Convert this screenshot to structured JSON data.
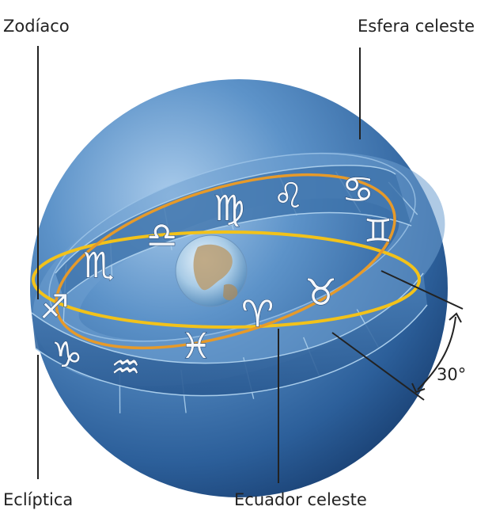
{
  "labels": {
    "zodiac": "Zodíaco",
    "celestial_sphere": "Esfera celeste",
    "ecliptic": "Eclíptica",
    "celestial_equator": "Ecuador celeste",
    "angle": "30°"
  },
  "zodiac_signs": [
    {
      "name": "cancer",
      "symbol": "♋"
    },
    {
      "name": "leo",
      "symbol": "♌"
    },
    {
      "name": "virgo",
      "symbol": "♍"
    },
    {
      "name": "libra",
      "symbol": "♎"
    },
    {
      "name": "scorpio",
      "symbol": "♏"
    },
    {
      "name": "sagittarius",
      "symbol": "♐"
    },
    {
      "name": "capricorn",
      "symbol": "♑"
    },
    {
      "name": "aquarius",
      "symbol": "♒"
    },
    {
      "name": "pisces",
      "symbol": "♓"
    },
    {
      "name": "aries",
      "symbol": "♈"
    },
    {
      "name": "taurus",
      "symbol": "♉"
    },
    {
      "name": "gemini",
      "symbol": "♊"
    }
  ],
  "colors": {
    "sphere_light": "#8fb6dd",
    "sphere_mid": "#3f78b5",
    "sphere_dark": "#173f74",
    "band": "#3d6fa5",
    "band_line": "#9fc6e8",
    "equator": "#f2c21a",
    "ecliptic": "#e69a2a",
    "label_text": "#222222"
  }
}
